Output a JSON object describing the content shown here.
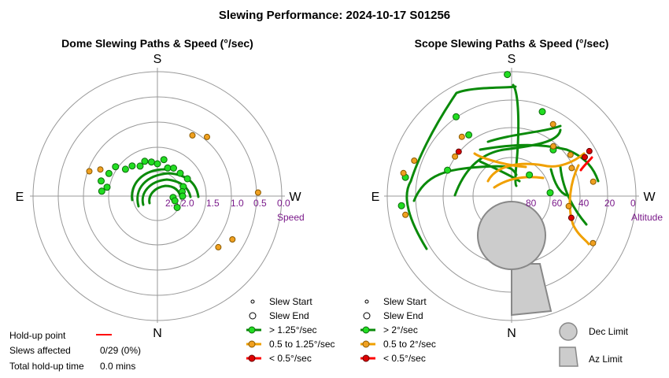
{
  "title": "Slewing Performance: 2024-10-17 S01256",
  "charts": [
    {
      "id": "dome",
      "subtitle": "Dome Slewing Paths & Speed (°/sec)",
      "compass": {
        "top": "S",
        "bottom": "N",
        "left": "E",
        "right": "W"
      },
      "scale_title": "Speed",
      "scale_labels": [
        "2.5",
        "2.0",
        "1.5",
        "1.0",
        "0.5",
        "0.0"
      ],
      "legend": {
        "slew_start": "Slew Start",
        "slew_end": "Slew End",
        "fast": "> 1.25°/sec",
        "medium": "0.5 to 1.25°/sec",
        "slow": "< 0.5°/sec"
      }
    },
    {
      "id": "scope",
      "subtitle": "Scope Slewing Paths & Speed (°/sec)",
      "compass": {
        "top": "S",
        "bottom": "N",
        "left": "E",
        "right": "W"
      },
      "scale_title": "Altitude",
      "scale_labels": [
        "80",
        "60",
        "40",
        "20",
        "0"
      ],
      "legend": {
        "slew_start": "Slew Start",
        "slew_end": "Slew End",
        "fast": "> 2°/sec",
        "medium": "0.5 to 2°/sec",
        "slow": "< 0.5°/sec",
        "dec_limit": "Dec Limit",
        "az_limit": "Az Limit"
      }
    }
  ],
  "holdup": {
    "point_label": "Hold-up point",
    "slews_label": "Slews affected",
    "slews_value": "0/29 (0%)",
    "time_label": "Total hold-up time",
    "time_value": "0.0 mins"
  },
  "colors": {
    "fast": "#0a8a0a",
    "fast_fill": "#22dd22",
    "medium": "#f0a000",
    "medium_fill": "#f0a020",
    "slow": "#ff0000",
    "slow_fill": "#dd0000",
    "grid": "#999999",
    "limit_fill": "#cccccc",
    "limit_stroke": "#888888",
    "holdup": "#ff0000",
    "scale_text": "#7a1a8a"
  },
  "chart_data": [
    {
      "type": "scatter",
      "projection": "polar",
      "title": "Dome Slewing Paths & Speed (°/sec)",
      "radial_axis": "Speed (°/sec)",
      "radial_ticks": [
        2.5,
        2.0,
        1.5,
        1.0,
        0.5,
        0.0
      ],
      "series": [
        {
          "name": "> 1.25°/sec",
          "color": "fast",
          "points": [
            [
              170,
              1.9
            ],
            [
              160,
              1.85
            ],
            [
              150,
              1.9
            ],
            [
              140,
              1.8
            ],
            [
              130,
              1.75
            ],
            [
              125,
              1.55
            ],
            [
              115,
              1.5
            ],
            [
              105,
              1.4
            ],
            [
              100,
              1.55
            ],
            [
              95,
              1.45
            ],
            [
              200,
              2.0
            ],
            [
              210,
              1.95
            ],
            [
              225,
              1.95
            ],
            [
              240,
              1.9
            ],
            [
              250,
              2.05
            ],
            [
              260,
              2.1
            ],
            [
              270,
              2.1
            ],
            [
              275,
              2.3
            ],
            [
              285,
              2.25
            ],
            [
              300,
              2.15
            ],
            [
              190,
              1.85
            ],
            [
              180,
              1.95
            ]
          ]
        },
        {
          "name": "0.5 to 1.25°/sec",
          "color": "medium",
          "points": [
            [
              210,
              1.15
            ],
            [
              220,
              1.0
            ],
            [
              268,
              0.5
            ],
            [
              115,
              1.3
            ],
            [
              110,
              1.1
            ],
            [
              310,
              0.95
            ],
            [
              300,
              0.8
            ]
          ]
        }
      ]
    },
    {
      "type": "scatter",
      "projection": "polar",
      "title": "Scope Slewing Paths & Speed (°/sec)",
      "radial_axis": "Altitude",
      "radial_ticks": [
        80,
        60,
        40,
        20,
        0
      ],
      "series": [
        {
          "name": "> 2°/sec",
          "color": "fast",
          "points": [
            [
              178,
              2
            ],
            [
              222,
              45
            ],
            [
              112,
              40
            ],
            [
              145,
              36
            ],
            [
              100,
              12
            ],
            [
              85,
              10
            ],
            [
              145,
              20
            ],
            [
              200,
              25
            ],
            [
              265,
              62
            ],
            [
              220,
              70
            ]
          ]
        },
        {
          "name": "0.5 to 2°/sec",
          "color": "medium",
          "points": [
            [
              210,
              30
            ],
            [
              220,
              43
            ],
            [
              235,
              38
            ],
            [
              245,
              42
            ],
            [
              260,
              30
            ],
            [
              300,
              22
            ],
            [
              280,
              48
            ],
            [
              125,
              40
            ],
            [
              140,
              34
            ],
            [
              102,
              10
            ],
            [
              110,
              15
            ],
            [
              80,
              12
            ]
          ]
        },
        {
          "name": "< 0.5°/sec",
          "color": "slow",
          "points": [
            [
              240,
              25
            ],
            [
              242,
              30
            ],
            [
              290,
              44
            ],
            [
              130,
              40
            ]
          ]
        }
      ]
    }
  ]
}
